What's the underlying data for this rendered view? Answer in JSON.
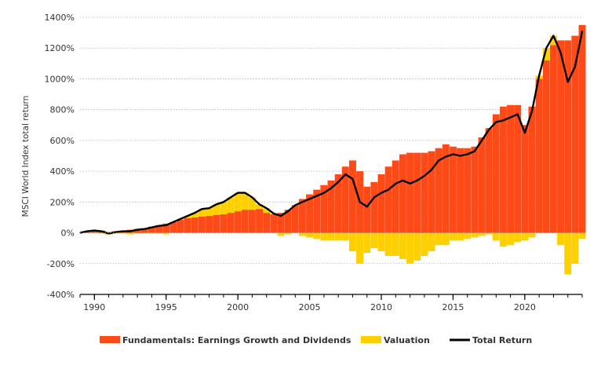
{
  "chart_data": {
    "type": "bar",
    "title": "",
    "xlabel": "",
    "ylabel": "MSCI World Index total return",
    "x_range": [
      1989,
      2024
    ],
    "ylim": [
      -400,
      1400
    ],
    "y_ticks": [
      -400,
      -200,
      0,
      200,
      400,
      600,
      800,
      1000,
      1200,
      1400
    ],
    "y_tick_labels": [
      "-400%",
      "-200%",
      "0%",
      "200%",
      "400%",
      "600%",
      "800%",
      "1000%",
      "1200%",
      "1400%"
    ],
    "x_ticks": [
      1990,
      1995,
      2000,
      2005,
      2010,
      2015,
      2020
    ],
    "x_tick_labels": [
      "1990",
      "1995",
      "2000",
      "2005",
      "2010",
      "2015",
      "2020"
    ],
    "grid": "horizontal-dotted",
    "legend_position": "bottom",
    "colors": {
      "fundamentals": "#fe4a16",
      "valuation": "#ffd000",
      "total_return": "#000000",
      "grid": "#b0b0b0",
      "axis": "#000000"
    },
    "legend": [
      {
        "key": "fundamentals",
        "label": "Fundamentals: Earnings Growth and Dividends"
      },
      {
        "key": "valuation",
        "label": "Valuation"
      },
      {
        "key": "total_return",
        "label": "Total Return"
      }
    ],
    "x": [
      1989.0,
      1989.5,
      1990.0,
      1990.5,
      1991.0,
      1991.5,
      1992.0,
      1992.5,
      1993.0,
      1993.5,
      1994.0,
      1994.5,
      1995.0,
      1995.5,
      1996.0,
      1996.5,
      1997.0,
      1997.5,
      1998.0,
      1998.5,
      1999.0,
      1999.5,
      2000.0,
      2000.5,
      2001.0,
      2001.5,
      2002.0,
      2002.5,
      2003.0,
      2003.5,
      2004.0,
      2004.5,
      2005.0,
      2005.5,
      2006.0,
      2006.5,
      2007.0,
      2007.5,
      2008.0,
      2008.5,
      2009.0,
      2009.5,
      2010.0,
      2010.5,
      2011.0,
      2011.5,
      2012.0,
      2012.5,
      2013.0,
      2013.5,
      2014.0,
      2014.5,
      2015.0,
      2015.5,
      2016.0,
      2016.5,
      2017.0,
      2017.5,
      2018.0,
      2018.5,
      2019.0,
      2019.5,
      2020.0,
      2020.5,
      2021.0,
      2021.5,
      2022.0,
      2022.5,
      2023.0,
      2023.5,
      2024.0
    ],
    "series": [
      {
        "key": "fundamentals",
        "name": "Fundamentals: Earnings Growth and Dividends",
        "values": [
          0,
          5,
          10,
          15,
          5,
          10,
          15,
          20,
          25,
          30,
          40,
          50,
          60,
          70,
          85,
          95,
          100,
          105,
          110,
          115,
          120,
          130,
          140,
          150,
          150,
          155,
          130,
          120,
          130,
          150,
          180,
          220,
          250,
          280,
          310,
          340,
          380,
          430,
          470,
          400,
          300,
          330,
          380,
          430,
          470,
          510,
          520,
          520,
          520,
          530,
          550,
          575,
          560,
          550,
          550,
          560,
          620,
          680,
          770,
          820,
          830,
          830,
          700,
          820,
          1000,
          1120,
          1220,
          1250,
          1250,
          1280,
          1350
        ]
      },
      {
        "key": "valuation",
        "name": "Valuation",
        "values": [
          0,
          5,
          5,
          -5,
          -10,
          -5,
          -5,
          -10,
          -5,
          -5,
          -5,
          -5,
          -10,
          0,
          5,
          15,
          30,
          50,
          50,
          70,
          80,
          100,
          120,
          110,
          80,
          30,
          30,
          5,
          -20,
          -10,
          0,
          -20,
          -30,
          -40,
          -50,
          -50,
          -50,
          -50,
          -120,
          -200,
          -130,
          -100,
          -120,
          -150,
          -150,
          -170,
          -200,
          -180,
          -150,
          -120,
          -80,
          -80,
          -50,
          -50,
          -40,
          -30,
          -20,
          -10,
          -50,
          -90,
          -80,
          -60,
          -50,
          -30,
          20,
          80,
          60,
          -80,
          -270,
          -200,
          -40
        ]
      },
      {
        "key": "total_return",
        "name": "Total Return",
        "values": [
          0,
          10,
          15,
          10,
          -5,
          5,
          10,
          10,
          20,
          25,
          35,
          45,
          50,
          70,
          90,
          110,
          130,
          155,
          160,
          185,
          200,
          230,
          260,
          260,
          230,
          185,
          160,
          125,
          110,
          140,
          180,
          200,
          220,
          240,
          260,
          290,
          330,
          380,
          350,
          200,
          170,
          230,
          260,
          280,
          320,
          340,
          320,
          340,
          370,
          410,
          470,
          495,
          510,
          500,
          510,
          530,
          600,
          670,
          720,
          730,
          750,
          770,
          650,
          790,
          1020,
          1200,
          1280,
          1170,
          980,
          1080,
          1310
        ]
      }
    ]
  }
}
